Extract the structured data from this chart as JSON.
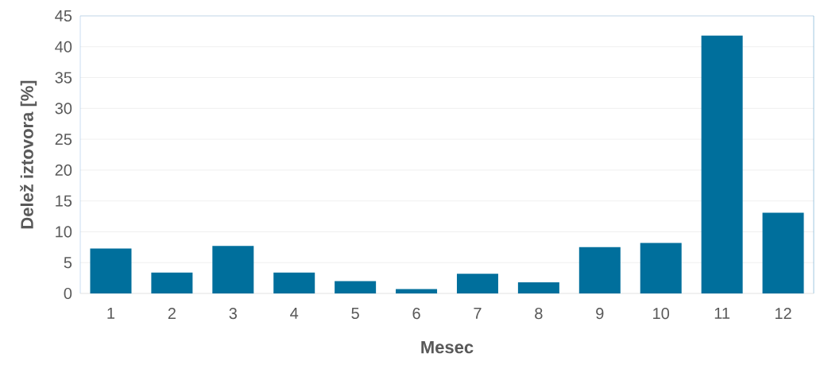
{
  "chart_data": {
    "type": "bar",
    "xlabel": "Mesec",
    "ylabel": "Delež iztovora [%]",
    "categories": [
      "1",
      "2",
      "3",
      "4",
      "5",
      "6",
      "7",
      "8",
      "9",
      "10",
      "11",
      "12"
    ],
    "values": [
      7.3,
      3.4,
      7.7,
      3.4,
      2.0,
      0.7,
      3.2,
      1.8,
      7.5,
      8.2,
      41.8,
      13.1
    ],
    "color": "#006f9c",
    "ylim": [
      0,
      45
    ],
    "yticks": [
      0,
      5,
      10,
      15,
      20,
      25,
      30,
      35,
      40,
      45
    ],
    "grid": "y"
  }
}
